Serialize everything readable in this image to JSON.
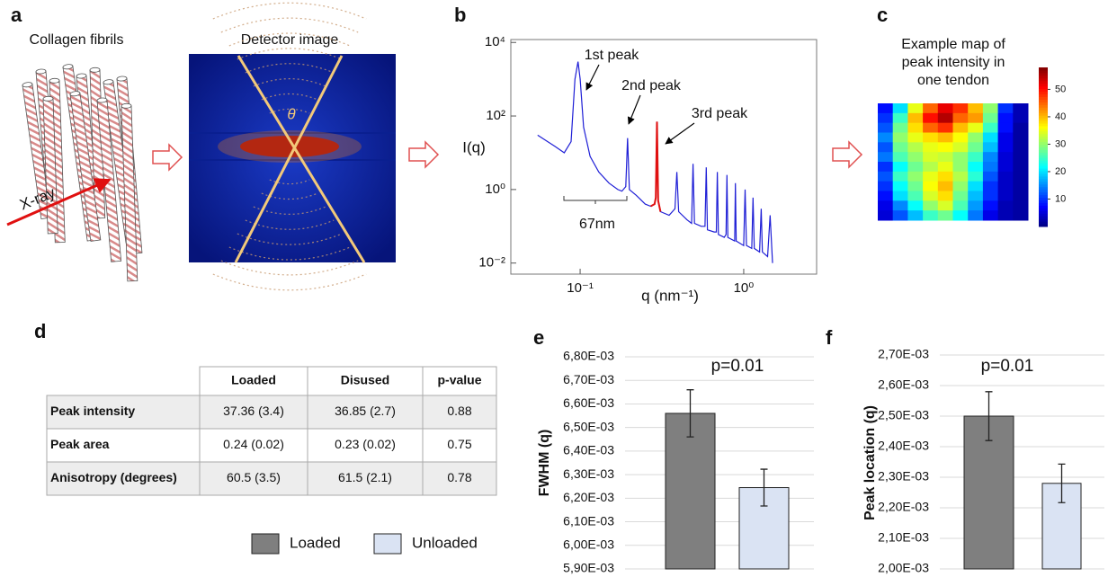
{
  "panel_labels": [
    "a",
    "b",
    "c",
    "d",
    "e",
    "f"
  ],
  "panel_a": {
    "fibrils_label": "Collagen fibrils",
    "beam_label": "X-ray",
    "detector_label": "Detector image",
    "angle_label": "θ"
  },
  "table": {
    "columns": [
      "Loaded",
      "Disused",
      "p-value"
    ],
    "rows": [
      [
        "Peak intensity",
        "37.36 (3.4)",
        "36.85 (2.7)",
        "0.88"
      ],
      [
        "Peak area",
        "0.24 (0.02)",
        "0.23 (0.02)",
        "0.75"
      ],
      [
        "Anisotropy (degrees)",
        "60.5 (3.5)",
        "61.5 (2.1)",
        "0.78"
      ]
    ]
  },
  "chart_data": [
    {
      "type": "line",
      "xscale": "log",
      "yscale": "log",
      "xlabel": "q (nm⁻¹)",
      "ylabel": "I(q)",
      "xlim": [
        0.0377,
        2.79
      ],
      "ylim": [
        0.005,
        12000
      ],
      "xticks": [
        {
          "value": 0.1,
          "label": "10⁻¹"
        },
        {
          "value": 1,
          "label": "10⁰"
        }
      ],
      "yticks": [
        {
          "value": 0.01,
          "label": "10⁻²"
        },
        {
          "value": 1,
          "label": "10⁰"
        },
        {
          "value": 100,
          "label": "10²"
        },
        {
          "value": 10000,
          "label": "10⁴"
        }
      ],
      "annotations": [
        "1st peak",
        "2nd peak",
        "3rd peak",
        "67nm"
      ],
      "x": [
        0.055,
        0.07,
        0.08,
        0.088,
        0.093,
        0.097,
        0.1,
        0.105,
        0.115,
        0.13,
        0.15,
        0.17,
        0.18,
        0.19,
        0.195,
        0.2,
        0.22,
        0.25,
        0.27,
        0.285,
        0.29,
        0.295,
        0.3,
        0.31,
        0.35,
        0.38,
        0.39,
        0.4,
        0.45,
        0.48,
        0.49,
        0.5,
        0.55,
        0.58,
        0.59,
        0.6,
        0.66,
        0.68,
        0.69,
        0.7,
        0.76,
        0.78,
        0.79,
        0.8,
        0.88,
        0.89,
        0.9,
        1.0,
        1.02,
        1.04,
        1.12,
        1.14,
        1.16,
        1.25,
        1.28,
        1.3,
        1.4,
        1.45,
        1.5
      ],
      "series": [
        {
          "color": "#1f1fd6",
          "values": [
            30,
            15,
            10,
            20,
            1000,
            3000,
            1000,
            50,
            8,
            3,
            1.5,
            1.0,
            0.9,
            1.2,
            25,
            1.0,
            0.7,
            0.4,
            0.35,
            0.4,
            0.6,
            70,
            0.5,
            0.25,
            0.2,
            0.3,
            3,
            0.25,
            0.15,
            0.12,
            5,
            0.12,
            0.1,
            0.1,
            4,
            0.08,
            0.07,
            0.07,
            3,
            0.06,
            0.05,
            0.06,
            2.5,
            0.05,
            0.04,
            1.5,
            0.04,
            0.03,
            1.0,
            0.03,
            0.025,
            0.6,
            0.025,
            0.02,
            0.3,
            0.02,
            0.015,
            0.2,
            0.01
          ]
        },
        {
          "color": "#e01010",
          "values": [
            null,
            null,
            null,
            null,
            null,
            null,
            null,
            null,
            null,
            null,
            null,
            null,
            null,
            null,
            null,
            null,
            null,
            null,
            0.35,
            0.4,
            0.6,
            70,
            0.5,
            0.25,
            null,
            null,
            null,
            null,
            null,
            null,
            null,
            null,
            null,
            null,
            null,
            null,
            null,
            null,
            null,
            null,
            null,
            null,
            null,
            null,
            null,
            null,
            null,
            null,
            null,
            null,
            null,
            null,
            null,
            null,
            null,
            null,
            null,
            null,
            null
          ]
        }
      ]
    },
    {
      "type": "heatmap",
      "title": [
        "Example map of",
        "peak intensity in",
        "one tendon"
      ],
      "colormap": "jet",
      "clim": [
        0,
        58
      ],
      "colorbar_ticks": [
        10,
        20,
        30,
        40,
        50
      ],
      "values": [
        [
          8,
          20,
          35,
          45,
          52,
          48,
          40,
          30,
          10,
          3
        ],
        [
          10,
          25,
          40,
          50,
          55,
          45,
          42,
          28,
          8,
          3
        ],
        [
          12,
          28,
          38,
          45,
          48,
          40,
          35,
          25,
          8,
          2
        ],
        [
          15,
          30,
          35,
          38,
          40,
          36,
          30,
          20,
          6,
          2
        ],
        [
          12,
          28,
          32,
          35,
          36,
          34,
          28,
          18,
          6,
          2
        ],
        [
          14,
          26,
          30,
          34,
          33,
          30,
          25,
          15,
          5,
          2
        ],
        [
          10,
          22,
          28,
          32,
          35,
          30,
          22,
          14,
          5,
          2
        ],
        [
          12,
          25,
          30,
          35,
          38,
          32,
          24,
          12,
          4,
          2
        ],
        [
          10,
          22,
          28,
          36,
          40,
          30,
          20,
          10,
          4,
          2
        ],
        [
          8,
          20,
          26,
          34,
          38,
          28,
          18,
          10,
          4,
          2
        ],
        [
          6,
          15,
          22,
          30,
          34,
          26,
          16,
          8,
          3,
          2
        ],
        [
          5,
          12,
          18,
          25,
          28,
          22,
          14,
          6,
          3,
          2
        ]
      ]
    },
    {
      "type": "bar",
      "ylabel": "FWHM (q)",
      "annotation": "p=0.01",
      "grid": true,
      "ylim": [
        0.0059,
        0.0068
      ],
      "yticks": [
        {
          "value": 0.0059,
          "label": "5,90E-03"
        },
        {
          "value": 0.006,
          "label": "6,00E-03"
        },
        {
          "value": 0.0061,
          "label": "6,10E-03"
        },
        {
          "value": 0.0062,
          "label": "6,20E-03"
        },
        {
          "value": 0.0063,
          "label": "6,30E-03"
        },
        {
          "value": 0.0064,
          "label": "6,40E-03"
        },
        {
          "value": 0.0065,
          "label": "6,50E-03"
        },
        {
          "value": 0.0066,
          "label": "6,60E-03"
        },
        {
          "value": 0.0067,
          "label": "6,70E-03"
        },
        {
          "value": 0.0068,
          "label": "6,80E-03"
        }
      ],
      "series": [
        {
          "name": "Loaded",
          "color": "#7f7f7f",
          "values": [
            0.00656
          ],
          "errors": [
            0.0001
          ]
        },
        {
          "name": "Unloaded",
          "color": "#dae3f3",
          "values": [
            0.006245
          ],
          "errors": [
            7.8e-05
          ]
        }
      ]
    },
    {
      "type": "bar",
      "ylabel": "Peak location (q)",
      "annotation": "p=0.01",
      "grid": true,
      "ylim": [
        0.002,
        0.0027
      ],
      "yticks": [
        {
          "value": 0.002,
          "label": "2,00E-03"
        },
        {
          "value": 0.0021,
          "label": "2,10E-03"
        },
        {
          "value": 0.0022,
          "label": "2,20E-03"
        },
        {
          "value": 0.0023,
          "label": "2,30E-03"
        },
        {
          "value": 0.0024,
          "label": "2,40E-03"
        },
        {
          "value": 0.0025,
          "label": "2,50E-03"
        },
        {
          "value": 0.0026,
          "label": "2,60E-03"
        },
        {
          "value": 0.0027,
          "label": "2,70E-03"
        }
      ],
      "series": [
        {
          "color": "#7f7f7f",
          "values": [
            0.0025
          ],
          "errors": [
            8e-05
          ]
        },
        {
          "color": "#dae3f3",
          "values": [
            0.00228
          ],
          "errors": [
            6.3e-05
          ]
        }
      ]
    }
  ]
}
